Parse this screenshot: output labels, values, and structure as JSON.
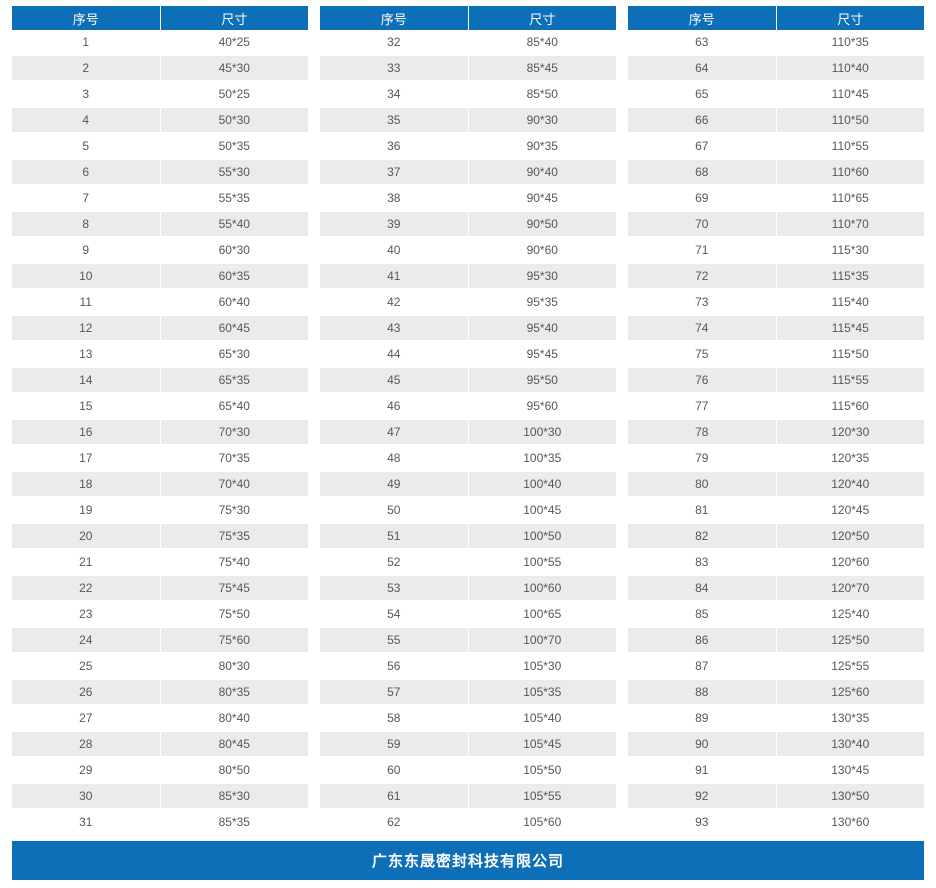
{
  "colors": {
    "header_blue": "#0d6fb8",
    "footer_blue": "#0d6fb8",
    "row_alt": "#ebebeb",
    "row_text": "#595757",
    "header_text": "#ffffff"
  },
  "table": {
    "columns": [
      "序号",
      "尺寸"
    ],
    "groups": [
      {
        "rows": [
          [
            "1",
            "40*25"
          ],
          [
            "2",
            "45*30"
          ],
          [
            "3",
            "50*25"
          ],
          [
            "4",
            "50*30"
          ],
          [
            "5",
            "50*35"
          ],
          [
            "6",
            "55*30"
          ],
          [
            "7",
            "55*35"
          ],
          [
            "8",
            "55*40"
          ],
          [
            "9",
            "60*30"
          ],
          [
            "10",
            "60*35"
          ],
          [
            "11",
            "60*40"
          ],
          [
            "12",
            "60*45"
          ],
          [
            "13",
            "65*30"
          ],
          [
            "14",
            "65*35"
          ],
          [
            "15",
            "65*40"
          ],
          [
            "16",
            "70*30"
          ],
          [
            "17",
            "70*35"
          ],
          [
            "18",
            "70*40"
          ],
          [
            "19",
            "75*30"
          ],
          [
            "20",
            "75*35"
          ],
          [
            "21",
            "75*40"
          ],
          [
            "22",
            "75*45"
          ],
          [
            "23",
            "75*50"
          ],
          [
            "24",
            "75*60"
          ],
          [
            "25",
            "80*30"
          ],
          [
            "26",
            "80*35"
          ],
          [
            "27",
            "80*40"
          ],
          [
            "28",
            "80*45"
          ],
          [
            "29",
            "80*50"
          ],
          [
            "30",
            "85*30"
          ],
          [
            "31",
            "85*35"
          ]
        ]
      },
      {
        "rows": [
          [
            "32",
            "85*40"
          ],
          [
            "33",
            "85*45"
          ],
          [
            "34",
            "85*50"
          ],
          [
            "35",
            "90*30"
          ],
          [
            "36",
            "90*35"
          ],
          [
            "37",
            "90*40"
          ],
          [
            "38",
            "90*45"
          ],
          [
            "39",
            "90*50"
          ],
          [
            "40",
            "90*60"
          ],
          [
            "41",
            "95*30"
          ],
          [
            "42",
            "95*35"
          ],
          [
            "43",
            "95*40"
          ],
          [
            "44",
            "95*45"
          ],
          [
            "45",
            "95*50"
          ],
          [
            "46",
            "95*60"
          ],
          [
            "47",
            "100*30"
          ],
          [
            "48",
            "100*35"
          ],
          [
            "49",
            "100*40"
          ],
          [
            "50",
            "100*45"
          ],
          [
            "51",
            "100*50"
          ],
          [
            "52",
            "100*55"
          ],
          [
            "53",
            "100*60"
          ],
          [
            "54",
            "100*65"
          ],
          [
            "55",
            "100*70"
          ],
          [
            "56",
            "105*30"
          ],
          [
            "57",
            "105*35"
          ],
          [
            "58",
            "105*40"
          ],
          [
            "59",
            "105*45"
          ],
          [
            "60",
            "105*50"
          ],
          [
            "61",
            "105*55"
          ],
          [
            "62",
            "105*60"
          ]
        ]
      },
      {
        "rows": [
          [
            "63",
            "110*35"
          ],
          [
            "64",
            "110*40"
          ],
          [
            "65",
            "110*45"
          ],
          [
            "66",
            "110*50"
          ],
          [
            "67",
            "110*55"
          ],
          [
            "68",
            "110*60"
          ],
          [
            "69",
            "110*65"
          ],
          [
            "70",
            "110*70"
          ],
          [
            "71",
            "115*30"
          ],
          [
            "72",
            "115*35"
          ],
          [
            "73",
            "115*40"
          ],
          [
            "74",
            "115*45"
          ],
          [
            "75",
            "115*50"
          ],
          [
            "76",
            "115*55"
          ],
          [
            "77",
            "115*60"
          ],
          [
            "78",
            "120*30"
          ],
          [
            "79",
            "120*35"
          ],
          [
            "80",
            "120*40"
          ],
          [
            "81",
            "120*45"
          ],
          [
            "82",
            "120*50"
          ],
          [
            "83",
            "120*60"
          ],
          [
            "84",
            "120*70"
          ],
          [
            "85",
            "125*40"
          ],
          [
            "86",
            "125*50"
          ],
          [
            "87",
            "125*55"
          ],
          [
            "88",
            "125*60"
          ],
          [
            "89",
            "130*35"
          ],
          [
            "90",
            "130*40"
          ],
          [
            "91",
            "130*45"
          ],
          [
            "92",
            "130*50"
          ],
          [
            "93",
            "130*60"
          ]
        ]
      }
    ]
  },
  "footer": {
    "company_name": "广东东晟密封科技有限公司"
  }
}
